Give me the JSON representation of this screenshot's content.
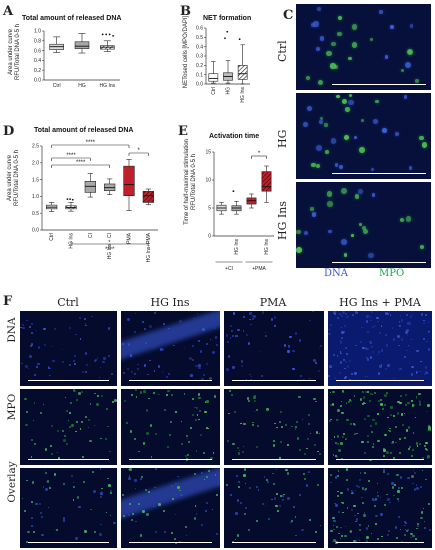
{
  "panels": {
    "A": {
      "label": "A",
      "title": "Total amount of released DNA",
      "ylabel_l1": "Area under curve",
      "ylabel_l2": "RFU/Total DNA 0-5 h"
    },
    "B": {
      "label": "B",
      "title": "NET formation",
      "ylabel": "NETosed cells [MPO/DAPI]"
    },
    "C": {
      "label": "C",
      "rows": [
        "Ctrl",
        "HG",
        "HG Ins"
      ],
      "legend_dna": "DNA",
      "legend_mpo": "MPO",
      "colors": {
        "dna": "#3b55c9",
        "mpo": "#1aa84a"
      }
    },
    "D": {
      "label": "D",
      "title": "Total amount of released DNA",
      "ylabel_l1": "Area under curve",
      "ylabel_l2": "RFU/Total DNA 0-5 h",
      "sig": [
        "****",
        "****",
        "****",
        "*",
        "****"
      ]
    },
    "E": {
      "label": "E",
      "title": "Activation time",
      "ylabel_l1": "Time of half-maximal stimulation",
      "ylabel_l2": "RFU/Total DNA 0-5 h",
      "group1": "+CI",
      "group2": "+PMA",
      "sig": "*"
    },
    "F": {
      "label": "F",
      "columns": [
        "Ctrl",
        "HG Ins",
        "PMA",
        "HG Ins + PMA"
      ],
      "rows": [
        "DNA",
        "MPO",
        "Overlay"
      ]
    }
  },
  "chart_data": [
    {
      "panel": "A",
      "type": "box",
      "categories": [
        "Ctrl",
        "HG",
        "HG Ins"
      ],
      "ylim": [
        0.0,
        1.0
      ],
      "yticks": [
        "0.0",
        "0.2",
        "0.4",
        "0.6",
        "0.8",
        "1.0"
      ],
      "boxes": [
        {
          "min": 0.56,
          "q1": 0.62,
          "median": 0.68,
          "q3": 0.73,
          "max": 0.88,
          "fill": "#d9d9d9"
        },
        {
          "min": 0.55,
          "q1": 0.64,
          "median": 0.69,
          "q3": 0.78,
          "max": 0.95,
          "fill": "#a8a8a8"
        },
        {
          "min": 0.58,
          "q1": 0.63,
          "median": 0.67,
          "q3": 0.7,
          "max": 0.8,
          "fill": "hatch",
          "outliers": [
            0.93,
            0.93,
            0.93,
            0.9
          ]
        }
      ]
    },
    {
      "panel": "B",
      "type": "box",
      "categories": [
        "Ctrl",
        "HG",
        "HG Ins"
      ],
      "ylim": [
        0.0,
        0.6
      ],
      "yticks": [
        "0.0",
        "0.1",
        "0.2",
        "0.3",
        "0.4",
        "0.5",
        "0.6"
      ],
      "boxes": [
        {
          "min": 0.01,
          "q1": 0.03,
          "median": 0.06,
          "q3": 0.11,
          "max": 0.24,
          "fill": "#ffffff"
        },
        {
          "min": 0.01,
          "q1": 0.04,
          "median": 0.08,
          "q3": 0.12,
          "max": 0.25,
          "fill": "#bdbdbd",
          "outliers": [
            0.49,
            0.56
          ]
        },
        {
          "min": 0.0,
          "q1": 0.05,
          "median": 0.11,
          "q3": 0.2,
          "max": 0.42,
          "fill": "hatch",
          "outliers": [
            0.48
          ]
        }
      ]
    },
    {
      "panel": "D",
      "type": "box",
      "categories": [
        "Ctrl",
        "HG Ins",
        "CI",
        "HG Ins + CI",
        "PMA",
        "HG Ins+PMA"
      ],
      "ylim": [
        0.0,
        2.5
      ],
      "yticks": [
        "0.0",
        "0.5",
        "1.0",
        "1.5",
        "2.0",
        "2.5"
      ],
      "boxes": [
        {
          "min": 0.55,
          "q1": 0.63,
          "median": 0.68,
          "q3": 0.74,
          "max": 0.82,
          "fill": "#d9d9d9"
        },
        {
          "min": 0.56,
          "q1": 0.63,
          "median": 0.67,
          "q3": 0.72,
          "max": 0.82,
          "fill": "hatch",
          "outliers": [
            0.92,
            0.92,
            0.9
          ]
        },
        {
          "min": 0.98,
          "q1": 1.12,
          "median": 1.3,
          "q3": 1.45,
          "max": 1.68,
          "fill": "#a8a8a8"
        },
        {
          "min": 1.05,
          "q1": 1.17,
          "median": 1.26,
          "q3": 1.37,
          "max": 1.52,
          "fill": "#a8a8a8"
        },
        {
          "min": 0.58,
          "q1": 1.02,
          "median": 1.35,
          "q3": 1.9,
          "max": 2.1,
          "fill": "#c0202a"
        },
        {
          "min": 0.75,
          "q1": 0.82,
          "median": 1.02,
          "q3": 1.15,
          "max": 1.22,
          "fill": "hatch-red"
        }
      ]
    },
    {
      "panel": "E",
      "type": "box",
      "categories": [
        "",
        "HG Ins",
        "",
        "HG Ins"
      ],
      "ylim": [
        0,
        15
      ],
      "yticks": [
        "0",
        "5",
        "10",
        "15"
      ],
      "boxes": [
        {
          "min": 3.9,
          "q1": 4.5,
          "median": 5.0,
          "q3": 5.5,
          "max": 6.0,
          "fill": "#d9d9d9"
        },
        {
          "min": 3.9,
          "q1": 4.5,
          "median": 5.0,
          "q3": 5.4,
          "max": 6.2,
          "fill": "#a8a8a8",
          "outliers": [
            8.0
          ]
        },
        {
          "min": 5.0,
          "q1": 5.7,
          "median": 6.3,
          "q3": 6.8,
          "max": 7.5,
          "fill": "#c0202a"
        },
        {
          "min": 6.0,
          "q1": 8.0,
          "median": 8.8,
          "q3": 11.5,
          "max": 12.5,
          "fill": "hatch-red"
        }
      ]
    }
  ]
}
